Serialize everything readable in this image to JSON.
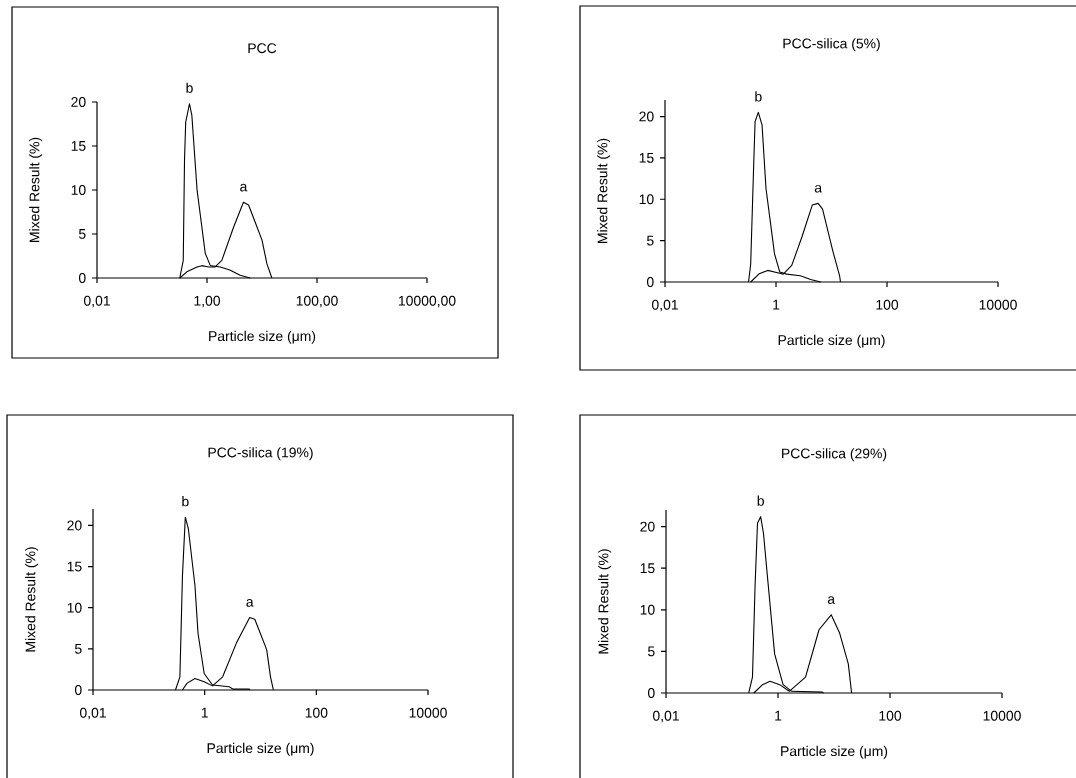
{
  "chart_data": [
    {
      "type": "line",
      "title": "PCC",
      "xlabel": "Particle size (μm)",
      "ylabel": "Mixed Result (%)",
      "log": "x",
      "xlim": [
        0.01,
        10000
      ],
      "ylim": [
        0,
        20
      ],
      "xticks": [
        {
          "value": 0.01,
          "label": "0,01"
        },
        {
          "value": 1,
          "label": "1,00"
        },
        {
          "value": 100,
          "label": "100,00"
        },
        {
          "value": 10000,
          "label": "10000,00"
        }
      ],
      "yticks": [
        0,
        5,
        10,
        15,
        20
      ],
      "series": [
        {
          "name": "b",
          "color": "#000000",
          "x": [
            0.32,
            0.37,
            0.39,
            0.41,
            0.48,
            0.53,
            0.66,
            0.93,
            1.15,
            1.74,
            2.6,
            4,
            6.1
          ],
          "values": [
            0,
            2,
            13.4,
            17.7,
            19.8,
            18.5,
            10,
            2.8,
            1.4,
            1.25,
            0.9,
            0.3,
            0
          ]
        },
        {
          "name": "a",
          "color": "#000000",
          "x": [
            0.32,
            0.43,
            0.66,
            0.81,
            1.07,
            1.41,
            1.86,
            3.05,
            4.6,
            5.7,
            10,
            12.3,
            15.1
          ],
          "values": [
            0,
            0.7,
            1.25,
            1.4,
            1.25,
            1.25,
            2,
            5.8,
            8.6,
            8.3,
            4.3,
            1.6,
            0
          ]
        }
      ]
    },
    {
      "type": "line",
      "title": "PCC-silica (5%)",
      "xlabel": "Particle size (μm)",
      "ylabel": "Mixed Result (%)",
      "log": "x",
      "xlim": [
        0.01,
        10000
      ],
      "ylim": [
        0,
        22
      ],
      "xticks": [
        {
          "value": 0.01,
          "label": "0,01"
        },
        1,
        100,
        10000
      ],
      "yticks": [
        0,
        5,
        10,
        15,
        20
      ],
      "series": [
        {
          "name": "b",
          "color": "#000000",
          "x": [
            0.32,
            0.35,
            0.4,
            0.42,
            0.48,
            0.56,
            0.66,
            0.94,
            1.17,
            1.55,
            2.75,
            4.2,
            6.4
          ],
          "values": [
            0,
            2.2,
            15.1,
            19.4,
            20.5,
            19,
            11.3,
            3.4,
            1.2,
            0.95,
            0.75,
            0.3,
            0
          ]
        },
        {
          "name": "a",
          "color": "#000000",
          "x": [
            0.35,
            0.5,
            0.71,
            1.02,
            1.35,
            1.92,
            2.95,
            4.5,
            5.75,
            6.9,
            10.6,
            14,
            14.5
          ],
          "values": [
            0,
            1,
            1.4,
            1.15,
            0.95,
            2,
            5.5,
            9.3,
            9.5,
            8.8,
            3.7,
            0.75,
            0
          ]
        }
      ]
    },
    {
      "type": "line",
      "title": "PCC-silica (19%)",
      "xlabel": "Particle size (μm)",
      "ylabel": "Mixed Result (%)",
      "log": "x",
      "xlim": [
        0.01,
        10000
      ],
      "ylim": [
        0,
        22
      ],
      "xticks": [
        {
          "value": 0.01,
          "label": "0,01"
        },
        1,
        100,
        10000
      ],
      "yticks": [
        0,
        5,
        10,
        15,
        20
      ],
      "series": [
        {
          "name": "b",
          "color": "#000000",
          "x": [
            0.3,
            0.36,
            0.4,
            0.45,
            0.51,
            0.67,
            0.76,
            0.98,
            1.38,
            2.75,
            3.2,
            6.3,
            6.5
          ],
          "values": [
            0,
            1.6,
            13.9,
            21,
            19.6,
            12.7,
            6.9,
            2,
            0.6,
            0.4,
            0.1,
            0.1,
            0
          ]
        },
        {
          "name": "a",
          "color": "#000000",
          "x": [
            0.4,
            0.48,
            0.67,
            0.98,
            1.38,
            2.1,
            3.7,
            6.4,
            7.9,
            12.9,
            15.1,
            17
          ],
          "values": [
            0,
            0.8,
            1.4,
            1,
            0.5,
            1.6,
            5.7,
            8.8,
            8.6,
            4.9,
            1.6,
            0
          ]
        }
      ]
    },
    {
      "type": "line",
      "title": "PCC-silica (29%)",
      "xlabel": "Particle size (μm)",
      "ylabel": "Mixed Result (%)",
      "log": "x",
      "xlim": [
        0.01,
        10000
      ],
      "ylim": [
        0,
        22
      ],
      "xticks": [
        {
          "value": 0.01,
          "label": "0,01"
        },
        1,
        100,
        10000
      ],
      "yticks": [
        0,
        5,
        10,
        15,
        20
      ],
      "series": [
        {
          "name": "b",
          "color": "#000000",
          "x": [
            0.3,
            0.35,
            0.39,
            0.43,
            0.49,
            0.55,
            0.66,
            0.87,
            1.23,
            1.76,
            6.2,
            6.5
          ],
          "values": [
            0,
            1.9,
            13,
            20.4,
            21.2,
            19.2,
            13.4,
            4.7,
            1,
            0.2,
            0.1,
            0
          ]
        },
        {
          "name": "a",
          "color": "#000000",
          "x": [
            0.37,
            0.53,
            0.72,
            1.07,
            1.59,
            3.1,
            5.4,
            8.9,
            12.6,
            18,
            20.6
          ],
          "values": [
            0,
            1,
            1.4,
            1,
            0.2,
            1.9,
            7.6,
            9.4,
            7.2,
            3.5,
            0
          ]
        }
      ]
    }
  ]
}
